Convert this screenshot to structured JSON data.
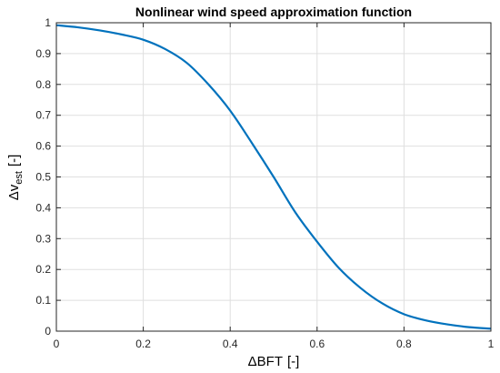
{
  "chart_data": {
    "type": "line",
    "title": "Nonlinear wind speed approximation function",
    "xlabel": {
      "prefix": "Δ",
      "main": "BFT",
      "unit": "[-]"
    },
    "ylabel": {
      "prefix": "Δ",
      "main": "v",
      "sub": "est",
      "unit": "[-]"
    },
    "xlim": [
      0,
      1
    ],
    "ylim": [
      0,
      1
    ],
    "xticks": [
      0,
      0.2,
      0.4,
      0.6,
      0.8,
      1
    ],
    "xtick_labels": [
      "0",
      "0.2",
      "0.4",
      "0.6",
      "0.8",
      "1"
    ],
    "yticks": [
      0,
      0.1,
      0.2,
      0.3,
      0.4,
      0.5,
      0.6,
      0.7,
      0.8,
      0.9,
      1
    ],
    "ytick_labels": [
      "0",
      "0.1",
      "0.2",
      "0.3",
      "0.4",
      "0.5",
      "0.6",
      "0.7",
      "0.8",
      "0.9",
      "1"
    ],
    "grid": true,
    "series": [
      {
        "color": "#0072BD",
        "x": [
          0,
          0.05,
          0.1,
          0.15,
          0.2,
          0.25,
          0.3,
          0.35,
          0.4,
          0.45,
          0.5,
          0.55,
          0.6,
          0.65,
          0.7,
          0.75,
          0.8,
          0.85,
          0.9,
          0.95,
          1
        ],
        "y": [
          0.992,
          0.985,
          0.975,
          0.962,
          0.945,
          0.915,
          0.87,
          0.8,
          0.715,
          0.61,
          0.5,
          0.385,
          0.29,
          0.205,
          0.14,
          0.09,
          0.055,
          0.035,
          0.022,
          0.013,
          0.008
        ]
      }
    ]
  }
}
